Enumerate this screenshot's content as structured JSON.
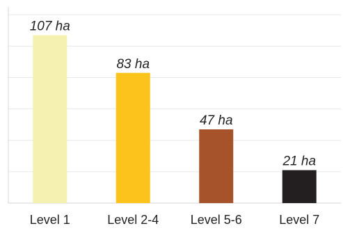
{
  "chart_data": {
    "type": "bar",
    "categories": [
      "Level 1",
      "Level 2-4",
      "Level 5-6",
      "Level 7"
    ],
    "values": [
      107,
      83,
      47,
      21
    ],
    "data_labels": [
      "107 ha",
      "83 ha",
      "47 ha",
      "21 ha"
    ],
    "colors": [
      "#f5f1b1",
      "#fcc31d",
      "#a6522a",
      "#231f20"
    ],
    "title": "",
    "xlabel": "",
    "ylabel": "",
    "ylim": [
      0,
      125
    ],
    "grid": true,
    "grid_step": 20,
    "legend": "none"
  }
}
